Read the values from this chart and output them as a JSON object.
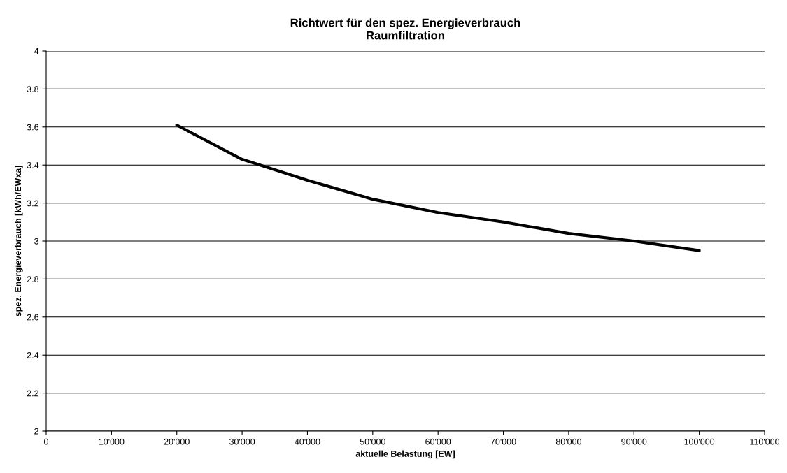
{
  "chart_data": {
    "type": "line",
    "title": "Richtwert für den spez. Energieverbrauch\nRaumfiltration",
    "xlabel": "aktuelle Belastung [EW]",
    "ylabel": "spez. Energieverbrauch [kWh/EWxa]",
    "x": [
      20000,
      30000,
      40000,
      50000,
      60000,
      70000,
      80000,
      90000,
      100000
    ],
    "series": [
      {
        "color": "#000000",
        "values": [
          3.61,
          3.43,
          3.32,
          3.22,
          3.15,
          3.1,
          3.04,
          3.0,
          2.95
        ]
      }
    ],
    "xlim": [
      0,
      110000
    ],
    "ylim": [
      2,
      4
    ],
    "xticks": [
      0,
      {
        "value": 10000,
        "label": "10'000"
      },
      {
        "value": 20000,
        "label": "20'000"
      },
      {
        "value": 30000,
        "label": "30'000"
      },
      {
        "value": 40000,
        "label": "40'000"
      },
      {
        "value": 50000,
        "label": "50'000"
      },
      {
        "value": 60000,
        "label": "60'000"
      },
      {
        "value": 70000,
        "label": "70'000"
      },
      {
        "value": 80000,
        "label": "80'000"
      },
      {
        "value": 90000,
        "label": "90'000"
      },
      {
        "value": 100000,
        "label": "100'000"
      },
      {
        "value": 110000,
        "label": "110'000"
      }
    ],
    "yticks": [
      2,
      2.2,
      2.4,
      2.6,
      2.8,
      3,
      3.2,
      3.4,
      3.6,
      3.8,
      4
    ],
    "grid": "y",
    "marker": "none",
    "line_style": "solid"
  }
}
